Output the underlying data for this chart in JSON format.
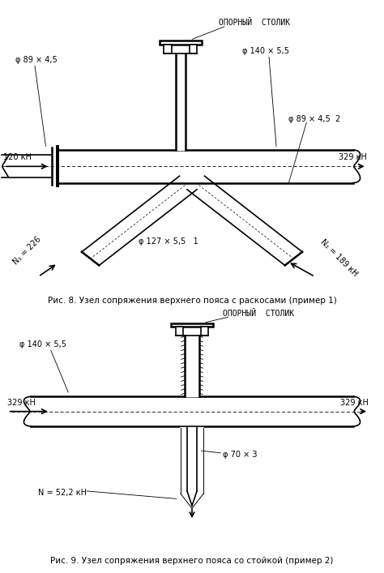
{
  "fig_width": 4.74,
  "fig_height": 7.07,
  "dpi": 100,
  "bg_color": "#ffffff",
  "line_color": "#000000",
  "fig8_caption": "Рис. 8. Узел сопряжения верхнего пояса с раскосами (пример 1)",
  "fig9_caption": "Рис. 9. Узел сопряжения верхнего пояса со стойкой (пример 2)",
  "fig8_labels": {
    "top_label": "ОПОРНЫЙ  СТОЛИК",
    "phi_left": "φ 89 × 4,5",
    "phi_right_top": "φ 140 × 5,5",
    "phi_right_bot": "φ 89 × 4,5  2",
    "phi_center": "φ 127 × 5,5   1",
    "force_left": "120 кН",
    "force_right": "329 кН",
    "N1": "N₁ = 226",
    "N2": "N₂ = 189 кН"
  },
  "fig9_labels": {
    "top_label": "ОПОРНЫЙ  СТОЛИК",
    "phi_left": "φ 140 × 5,5",
    "phi_center": "φ 70 × 3",
    "force_left": "329 кН",
    "force_right": "329 кН",
    "N": "N = 52,2 кН"
  }
}
